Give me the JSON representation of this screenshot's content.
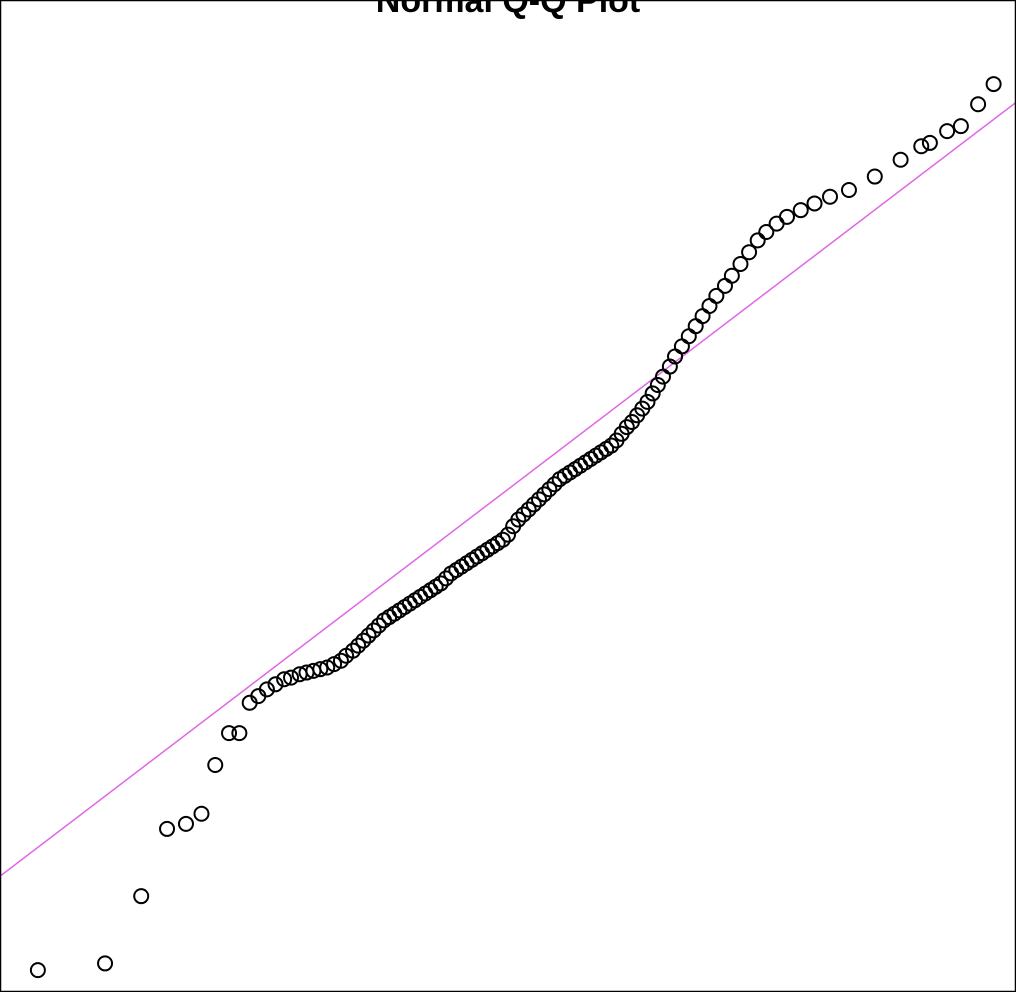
{
  "chart_data": {
    "type": "scatter",
    "title": "Normal Q-Q Plot",
    "xlabel": "",
    "ylabel": "",
    "xlim": [
      -2.95,
      2.95
    ],
    "ylim": [
      -2.95,
      2.95
    ],
    "grid": false,
    "legend": "none",
    "colors": {
      "points": "#000000",
      "reference_line": "#e066e6",
      "frame": "#000000",
      "background": "#ffffff"
    },
    "reference_line": {
      "slope": 0.78,
      "intercept": 0.04
    },
    "series": [
      {
        "values": [
          [
            -2.73,
            -2.82
          ],
          [
            -2.34,
            -2.78
          ],
          [
            -2.13,
            -2.38
          ],
          [
            -1.98,
            -1.98
          ],
          [
            -1.87,
            -1.95
          ],
          [
            -1.78,
            -1.89
          ],
          [
            -1.7,
            -1.6
          ],
          [
            -1.62,
            -1.41
          ],
          [
            -1.56,
            -1.41
          ],
          [
            -1.5,
            -1.23
          ],
          [
            -1.45,
            -1.19
          ],
          [
            -1.4,
            -1.15
          ],
          [
            -1.35,
            -1.12
          ],
          [
            -1.3,
            -1.09
          ],
          [
            -1.26,
            -1.08
          ],
          [
            -1.21,
            -1.06
          ],
          [
            -1.17,
            -1.05
          ],
          [
            -1.13,
            -1.04
          ],
          [
            -1.09,
            -1.03
          ],
          [
            -1.05,
            -1.02
          ],
          [
            -1.01,
            -1.0
          ],
          [
            -0.97,
            -0.98
          ],
          [
            -0.94,
            -0.95
          ],
          [
            -0.9,
            -0.92
          ],
          [
            -0.87,
            -0.89
          ],
          [
            -0.84,
            -0.86
          ],
          [
            -0.81,
            -0.83
          ],
          [
            -0.78,
            -0.8
          ],
          [
            -0.75,
            -0.77
          ],
          [
            -0.72,
            -0.74
          ],
          [
            -0.69,
            -0.72
          ],
          [
            -0.66,
            -0.7
          ],
          [
            -0.63,
            -0.68
          ],
          [
            -0.6,
            -0.66
          ],
          [
            -0.57,
            -0.64
          ],
          [
            -0.54,
            -0.62
          ],
          [
            -0.51,
            -0.6
          ],
          [
            -0.48,
            -0.58
          ],
          [
            -0.45,
            -0.56
          ],
          [
            -0.42,
            -0.54
          ],
          [
            -0.39,
            -0.52
          ],
          [
            -0.36,
            -0.49
          ],
          [
            -0.33,
            -0.46
          ],
          [
            -0.3,
            -0.44
          ],
          [
            -0.27,
            -0.42
          ],
          [
            -0.24,
            -0.4
          ],
          [
            -0.21,
            -0.38
          ],
          [
            -0.18,
            -0.36
          ],
          [
            -0.15,
            -0.34
          ],
          [
            -0.12,
            -0.32
          ],
          [
            -0.09,
            -0.3
          ],
          [
            -0.06,
            -0.28
          ],
          [
            -0.03,
            -0.26
          ],
          [
            0.0,
            -0.23
          ],
          [
            0.03,
            -0.18
          ],
          [
            0.06,
            -0.14
          ],
          [
            0.09,
            -0.11
          ],
          [
            0.12,
            -0.08
          ],
          [
            0.15,
            -0.05
          ],
          [
            0.18,
            -0.02
          ],
          [
            0.21,
            0.01
          ],
          [
            0.24,
            0.04
          ],
          [
            0.27,
            0.07
          ],
          [
            0.3,
            0.1
          ],
          [
            0.33,
            0.12
          ],
          [
            0.36,
            0.14
          ],
          [
            0.39,
            0.16
          ],
          [
            0.42,
            0.18
          ],
          [
            0.45,
            0.2
          ],
          [
            0.48,
            0.22
          ],
          [
            0.51,
            0.24
          ],
          [
            0.54,
            0.26
          ],
          [
            0.57,
            0.28
          ],
          [
            0.6,
            0.3
          ],
          [
            0.63,
            0.33
          ],
          [
            0.66,
            0.37
          ],
          [
            0.69,
            0.41
          ],
          [
            0.72,
            0.44
          ],
          [
            0.75,
            0.48
          ],
          [
            0.78,
            0.52
          ],
          [
            0.81,
            0.56
          ],
          [
            0.84,
            0.61
          ],
          [
            0.87,
            0.66
          ],
          [
            0.9,
            0.71
          ],
          [
            0.94,
            0.77
          ],
          [
            0.97,
            0.83
          ],
          [
            1.01,
            0.89
          ],
          [
            1.05,
            0.95
          ],
          [
            1.09,
            1.01
          ],
          [
            1.13,
            1.07
          ],
          [
            1.17,
            1.13
          ],
          [
            1.21,
            1.19
          ],
          [
            1.26,
            1.25
          ],
          [
            1.3,
            1.31
          ],
          [
            1.35,
            1.38
          ],
          [
            1.4,
            1.45
          ],
          [
            1.45,
            1.52
          ],
          [
            1.5,
            1.57
          ],
          [
            1.56,
            1.62
          ],
          [
            1.62,
            1.66
          ],
          [
            1.7,
            1.7
          ],
          [
            1.78,
            1.74
          ],
          [
            1.87,
            1.78
          ],
          [
            1.98,
            1.82
          ],
          [
            2.13,
            1.9
          ],
          [
            2.28,
            2.0
          ],
          [
            2.4,
            2.08
          ],
          [
            2.45,
            2.1
          ],
          [
            2.55,
            2.17
          ],
          [
            2.63,
            2.2
          ],
          [
            2.73,
            2.33
          ],
          [
            2.82,
            2.45
          ]
        ]
      }
    ]
  }
}
